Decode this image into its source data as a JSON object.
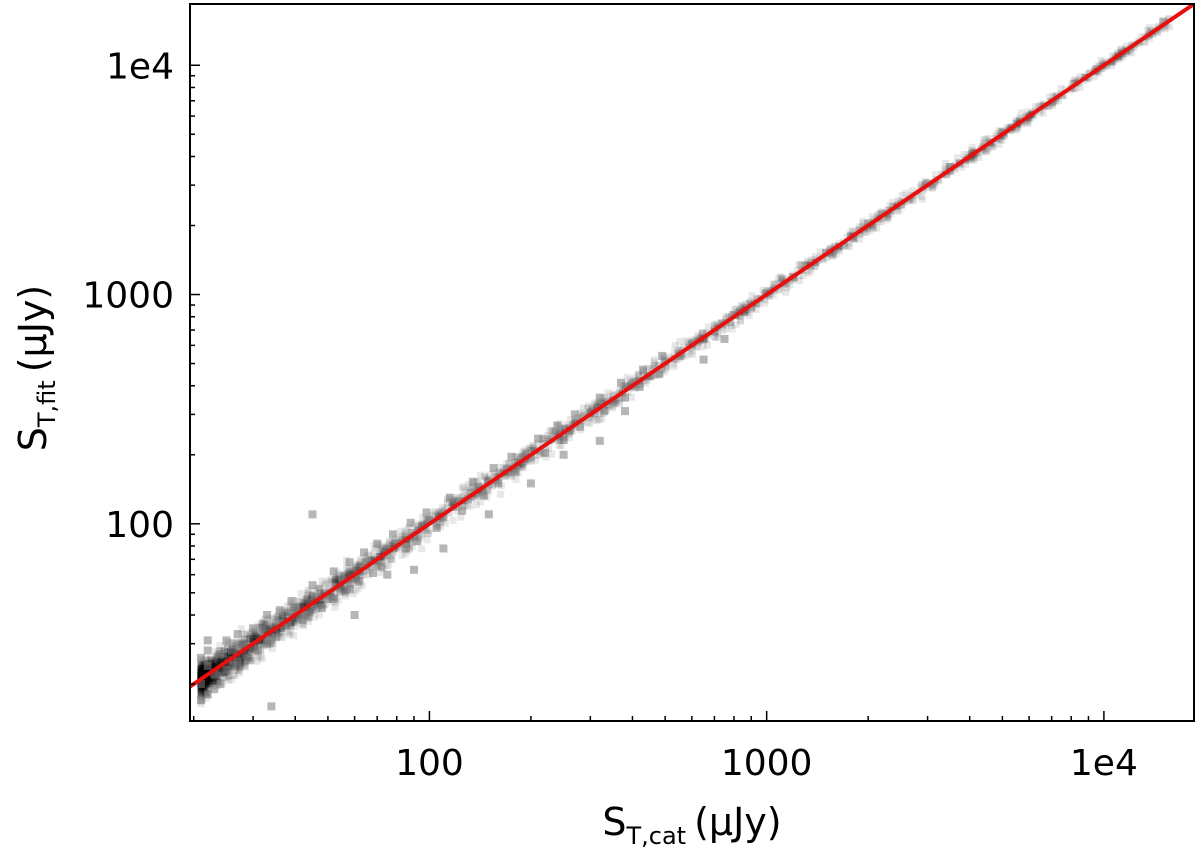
{
  "chart_data": {
    "type": "scatter",
    "xscale": "log",
    "yscale": "log",
    "xlim": [
      19.5,
      18500
    ],
    "ylim": [
      13.8,
      18500
    ],
    "grid": false,
    "xlabel": {
      "main": "S",
      "sub": "T,cat",
      "unit": "(μJy)"
    },
    "ylabel": {
      "main": "S",
      "sub": "T,fit",
      "unit": "(μJy)"
    },
    "xticks": [
      {
        "value": 100,
        "label": "100"
      },
      {
        "value": 1000,
        "label": "1000"
      },
      {
        "value": 10000,
        "label": "1e4"
      }
    ],
    "yticks": [
      {
        "value": 100,
        "label": "100"
      },
      {
        "value": 1000,
        "label": "1000"
      },
      {
        "value": 10000,
        "label": "1e4"
      }
    ],
    "point_color": "#7a7a7a",
    "fit_line": {
      "slope": 1.0,
      "intercept": 0.0,
      "color": "#e8100f",
      "from": 19.5,
      "to": 18500
    },
    "sample_points": [
      [
        21,
        20
      ],
      [
        22,
        24
      ],
      [
        23,
        22
      ],
      [
        24,
        27
      ],
      [
        25,
        23
      ],
      [
        26,
        28
      ],
      [
        27,
        25
      ],
      [
        28,
        30
      ],
      [
        30,
        29
      ],
      [
        32,
        35
      ],
      [
        34,
        31
      ],
      [
        36,
        37
      ],
      [
        38,
        36
      ],
      [
        40,
        43
      ],
      [
        43,
        40
      ],
      [
        46,
        48
      ],
      [
        50,
        47
      ],
      [
        55,
        57
      ],
      [
        60,
        58
      ],
      [
        65,
        68
      ],
      [
        70,
        66
      ],
      [
        75,
        78
      ],
      [
        80,
        82
      ],
      [
        90,
        88
      ],
      [
        95,
        98
      ],
      [
        100,
        104
      ],
      [
        110,
        107
      ],
      [
        120,
        126
      ],
      [
        130,
        128
      ],
      [
        140,
        145
      ],
      [
        150,
        150
      ],
      [
        170,
        172
      ],
      [
        190,
        195
      ],
      [
        200,
        196
      ],
      [
        230,
        234
      ],
      [
        260,
        255
      ],
      [
        300,
        305
      ],
      [
        350,
        342
      ],
      [
        400,
        410
      ],
      [
        450,
        440
      ],
      [
        500,
        510
      ],
      [
        550,
        540
      ],
      [
        600,
        612
      ],
      [
        700,
        690
      ],
      [
        800,
        815
      ],
      [
        900,
        880
      ],
      [
        1000,
        1010
      ],
      [
        1200,
        1190
      ],
      [
        1500,
        1520
      ],
      [
        1800,
        1760
      ],
      [
        2000,
        2040
      ],
      [
        2500,
        2470
      ],
      [
        3000,
        3050
      ],
      [
        3500,
        3600
      ],
      [
        5000,
        5100
      ],
      [
        7000,
        6900
      ],
      [
        9500,
        9600
      ],
      [
        15000,
        15500
      ],
      [
        29,
        26
      ],
      [
        31,
        28
      ],
      [
        33,
        30
      ],
      [
        35,
        32
      ],
      [
        42,
        38
      ],
      [
        48,
        43
      ],
      [
        52,
        47
      ],
      [
        58,
        52
      ],
      [
        62,
        56
      ],
      [
        68,
        61
      ],
      [
        72,
        65
      ],
      [
        85,
        78
      ],
      [
        92,
        84
      ],
      [
        105,
        96
      ],
      [
        125,
        114
      ],
      [
        145,
        133
      ],
      [
        160,
        150
      ],
      [
        180,
        168
      ],
      [
        220,
        204
      ],
      [
        250,
        232
      ],
      [
        280,
        265
      ],
      [
        330,
        310
      ],
      [
        380,
        355
      ],
      [
        420,
        395
      ],
      [
        480,
        452
      ],
      [
        25,
        31
      ],
      [
        27,
        33
      ],
      [
        30,
        35
      ],
      [
        33,
        40
      ],
      [
        36,
        42
      ],
      [
        39,
        46
      ],
      [
        45,
        54
      ],
      [
        52,
        62
      ],
      [
        58,
        68
      ],
      [
        64,
        75
      ],
      [
        70,
        82
      ],
      [
        78,
        90
      ],
      [
        88,
        101
      ],
      [
        98,
        112
      ],
      [
        115,
        130
      ],
      [
        135,
        152
      ],
      [
        155,
        175
      ],
      [
        175,
        196
      ],
      [
        210,
        235
      ],
      [
        240,
        268
      ],
      [
        270,
        300
      ],
      [
        320,
        355
      ],
      [
        370,
        412
      ],
      [
        430,
        470
      ],
      [
        490,
        540
      ],
      [
        21,
        17
      ],
      [
        22,
        18
      ],
      [
        23,
        19
      ],
      [
        24,
        20
      ],
      [
        21,
        26
      ],
      [
        22,
        28
      ],
      [
        22,
        31
      ],
      [
        34,
        16
      ],
      [
        45,
        110
      ],
      [
        60,
        40
      ],
      [
        75,
        60
      ],
      [
        90,
        63
      ],
      [
        110,
        78
      ],
      [
        150,
        110
      ],
      [
        200,
        150
      ],
      [
        250,
        200
      ],
      [
        320,
        230
      ],
      [
        380,
        310
      ],
      [
        650,
        520
      ],
      [
        750,
        640
      ]
    ]
  }
}
